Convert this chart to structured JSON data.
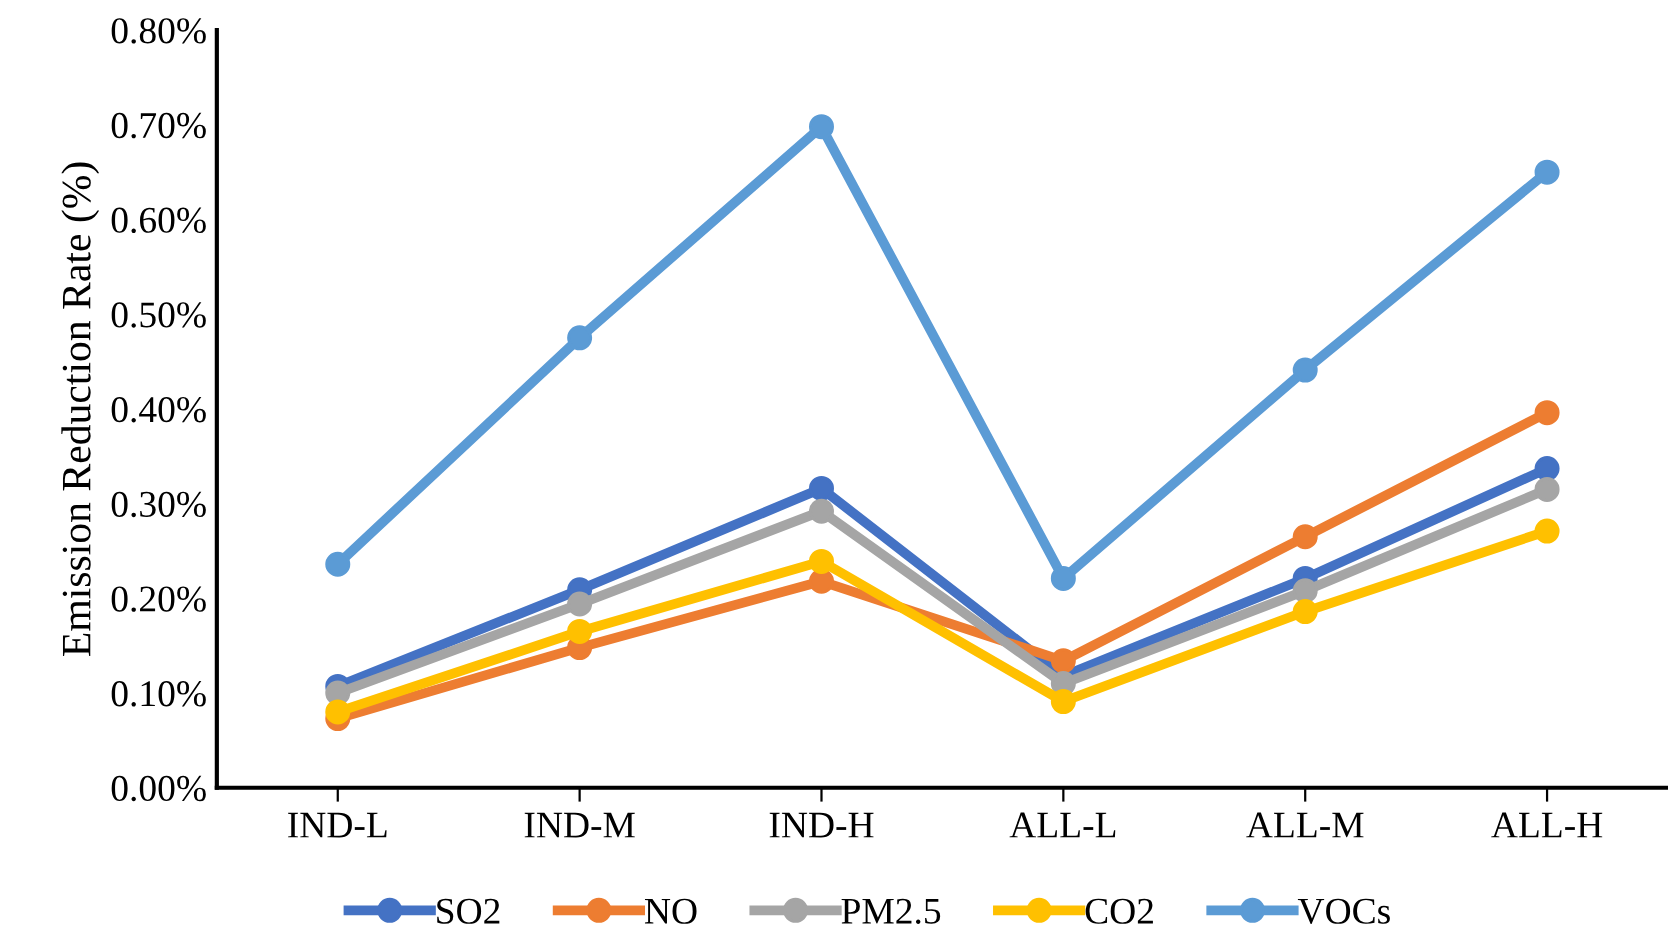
{
  "chart_data": {
    "type": "line",
    "ylabel": "Emission Reduction Rate (%)",
    "categories": [
      "IND-L",
      "IND-M",
      "IND-H",
      "ALL-L",
      "ALL-M",
      "ALL-H"
    ],
    "series": [
      {
        "name": "SO2",
        "color": "#4472c4",
        "values": [
          0.107,
          0.209,
          0.316,
          0.118,
          0.221,
          0.337
        ]
      },
      {
        "name": "NO",
        "color": "#ed7d31",
        "values": [
          0.073,
          0.148,
          0.218,
          0.134,
          0.265,
          0.396
        ]
      },
      {
        "name": "PM2.5",
        "color": "#a5a5a5",
        "values": [
          0.1,
          0.194,
          0.292,
          0.11,
          0.208,
          0.315
        ]
      },
      {
        "name": "CO2",
        "color": "#ffc000",
        "values": [
          0.08,
          0.165,
          0.239,
          0.091,
          0.186,
          0.271
        ]
      },
      {
        "name": "VOCs",
        "color": "#5b9bd5",
        "values": [
          0.236,
          0.475,
          0.698,
          0.221,
          0.441,
          0.65
        ]
      }
    ],
    "ylim": [
      0,
      0.8
    ],
    "yticks": [
      {
        "value": 0,
        "label": "0.00%"
      },
      {
        "value": 0.1,
        "label": "0.10%"
      },
      {
        "value": 0.2,
        "label": "0.20%"
      },
      {
        "value": 0.3,
        "label": "0.30%"
      },
      {
        "value": 0.4,
        "label": "0.40%"
      },
      {
        "value": 0.5,
        "label": "0.50%"
      },
      {
        "value": 0.6,
        "label": "0.60%"
      },
      {
        "value": 0.7,
        "label": "0.70%"
      },
      {
        "value": 0.8,
        "label": "0.80%"
      }
    ],
    "grid": false,
    "legend": "bottom",
    "marker": "circle",
    "line_style": "solid"
  }
}
